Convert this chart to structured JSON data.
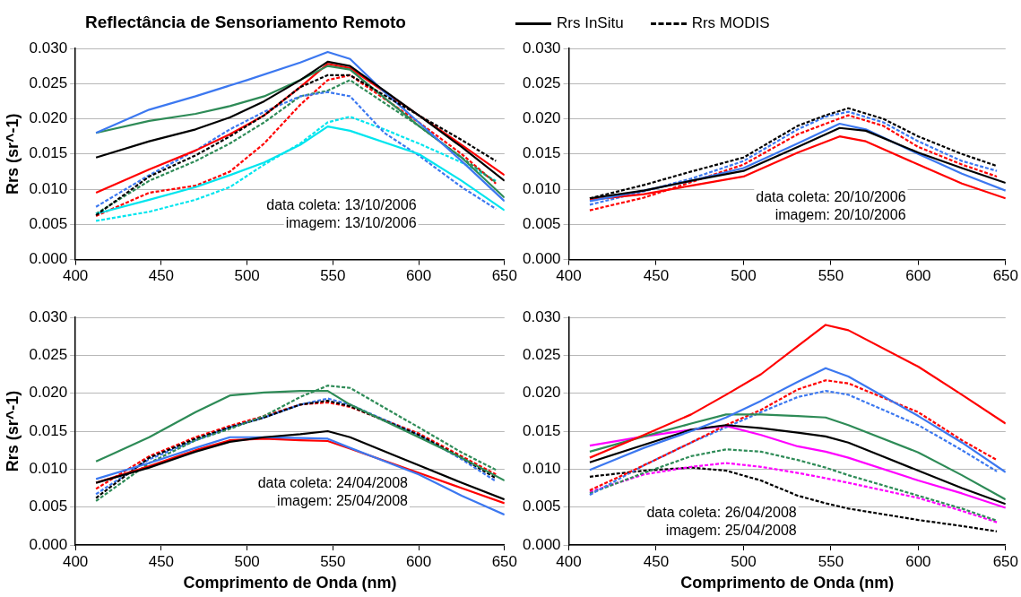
{
  "chart_data": [
    {
      "type": "line",
      "title": "Reflectância de Sensoriamento Remoto",
      "ylabel": "Rrs (sr^-1)",
      "xlim": [
        400,
        650
      ],
      "xticks": [
        400,
        450,
        500,
        550,
        600,
        650
      ],
      "ylim": [
        0,
        0.03
      ],
      "yticks": [
        {
          "value": 0,
          "label": "0.000"
        },
        {
          "value": 0.005,
          "label": "0.005"
        },
        {
          "value": 0.01,
          "label": "0.010"
        },
        {
          "value": 0.015,
          "label": "0.015"
        },
        {
          "value": 0.02,
          "label": "0.020"
        },
        {
          "value": 0.025,
          "label": "0.025"
        },
        {
          "value": 0.03,
          "label": "0.030"
        }
      ],
      "grid": "y",
      "legend": "top",
      "annotations": [
        "data coleta: 13/10/2006",
        "imagem: 13/10/2006"
      ],
      "series": [
        {
          "name": "Rrs InSitu",
          "color": "#000000",
          "line_style": "solid",
          "x": [
            412,
            443,
            470,
            490,
            510,
            531,
            547,
            560,
            600,
            625,
            650
          ],
          "values": [
            0.0145,
            0.0168,
            0.0185,
            0.0202,
            0.0225,
            0.0255,
            0.0281,
            0.0275,
            0.0205,
            0.016,
            0.0112
          ]
        },
        {
          "name": "Rrs MODIS",
          "color": "#000000",
          "line_style": "dashed",
          "x": [
            412,
            443,
            470,
            490,
            510,
            531,
            547,
            560,
            600,
            625,
            645
          ],
          "values": [
            0.0063,
            0.0118,
            0.0148,
            0.0175,
            0.0205,
            0.0245,
            0.0262,
            0.0262,
            0.0205,
            0.017,
            0.014
          ]
        },
        {
          "color": "#3c78f0",
          "line_style": "solid",
          "x": [
            412,
            443,
            470,
            500,
            531,
            547,
            560,
            580,
            600,
            625,
            650
          ],
          "values": [
            0.018,
            0.0213,
            0.0232,
            0.0255,
            0.028,
            0.0295,
            0.0285,
            0.0238,
            0.0195,
            0.014,
            0.0083
          ]
        },
        {
          "color": "#2e8b57",
          "line_style": "solid",
          "x": [
            412,
            443,
            470,
            490,
            510,
            531,
            547,
            560,
            600,
            625,
            650
          ],
          "values": [
            0.018,
            0.0197,
            0.0207,
            0.0218,
            0.0232,
            0.0255,
            0.0275,
            0.027,
            0.019,
            0.0145,
            0.0088
          ]
        },
        {
          "color": "#ff0000",
          "line_style": "solid",
          "x": [
            412,
            443,
            470,
            490,
            510,
            531,
            547,
            560,
            600,
            625,
            650
          ],
          "values": [
            0.0095,
            0.0128,
            0.0155,
            0.0178,
            0.0205,
            0.0245,
            0.0278,
            0.0272,
            0.0205,
            0.0163,
            0.012
          ]
        },
        {
          "color": "#00e5ee",
          "line_style": "solid",
          "x": [
            412,
            443,
            470,
            490,
            510,
            531,
            547,
            560,
            600,
            625,
            650
          ],
          "values": [
            0.0065,
            0.0085,
            0.0103,
            0.012,
            0.0138,
            0.0163,
            0.0189,
            0.0183,
            0.015,
            0.0112,
            0.007
          ]
        },
        {
          "color": "#3c78f0",
          "line_style": "dashed",
          "x": [
            412,
            443,
            470,
            490,
            510,
            531,
            547,
            560,
            580,
            600,
            625,
            645
          ],
          "values": [
            0.0075,
            0.012,
            0.0155,
            0.0185,
            0.021,
            0.0232,
            0.0238,
            0.0232,
            0.018,
            0.0148,
            0.0103,
            0.0072
          ]
        },
        {
          "color": "#2e8b57",
          "line_style": "dashed",
          "x": [
            412,
            443,
            470,
            490,
            510,
            531,
            547,
            560,
            600,
            625,
            645
          ],
          "values": [
            0.0065,
            0.0112,
            0.014,
            0.0165,
            0.0195,
            0.0232,
            0.024,
            0.0255,
            0.019,
            0.0145,
            0.011
          ]
        },
        {
          "color": "#ff0000",
          "line_style": "dashed",
          "x": [
            412,
            443,
            470,
            490,
            510,
            531,
            547,
            560,
            600,
            625,
            645
          ],
          "values": [
            0.0062,
            0.0095,
            0.0105,
            0.0125,
            0.0165,
            0.022,
            0.0255,
            0.0262,
            0.0195,
            0.015,
            0.0108
          ]
        },
        {
          "color": "#00e5ee",
          "line_style": "dashed",
          "x": [
            412,
            443,
            470,
            490,
            510,
            531,
            547,
            560,
            580,
            600,
            625,
            645
          ],
          "values": [
            0.0055,
            0.0068,
            0.0085,
            0.0103,
            0.0135,
            0.0165,
            0.0195,
            0.0203,
            0.0185,
            0.0165,
            0.0138,
            0.0112
          ]
        }
      ]
    },
    {
      "type": "line",
      "xlim": [
        400,
        650
      ],
      "xticks": [
        400,
        450,
        500,
        550,
        600,
        650
      ],
      "ylim": [
        0,
        0.03
      ],
      "yticks": [
        {
          "value": 0,
          "label": "0.000"
        },
        {
          "value": 0.005,
          "label": "0.005"
        },
        {
          "value": 0.01,
          "label": "0.010"
        },
        {
          "value": 0.015,
          "label": "0.015"
        },
        {
          "value": 0.02,
          "label": "0.020"
        },
        {
          "value": 0.025,
          "label": "0.025"
        },
        {
          "value": 0.03,
          "label": "0.030"
        }
      ],
      "grid": "y",
      "annotations": [
        "data coleta: 20/10/2006",
        "imagem: 20/10/2006"
      ],
      "series": [
        {
          "color": "#000000",
          "line_style": "solid",
          "x": [
            412,
            443,
            470,
            500,
            531,
            555,
            570,
            600,
            625,
            650
          ],
          "values": [
            0.0087,
            0.0098,
            0.0112,
            0.0126,
            0.016,
            0.0187,
            0.0183,
            0.0152,
            0.013,
            0.0109
          ]
        },
        {
          "color": "#3c78f0",
          "line_style": "solid",
          "x": [
            412,
            443,
            470,
            500,
            531,
            555,
            570,
            600,
            625,
            650
          ],
          "values": [
            0.0083,
            0.0098,
            0.0112,
            0.013,
            0.0165,
            0.0193,
            0.0185,
            0.015,
            0.0122,
            0.0098
          ]
        },
        {
          "color": "#ff0000",
          "line_style": "solid",
          "x": [
            412,
            443,
            470,
            500,
            531,
            555,
            570,
            600,
            625,
            650
          ],
          "values": [
            0.0085,
            0.0093,
            0.0105,
            0.0118,
            0.0152,
            0.0175,
            0.0168,
            0.0135,
            0.0108,
            0.0087
          ]
        },
        {
          "color": "#000000",
          "line_style": "dashed",
          "x": [
            412,
            443,
            470,
            500,
            531,
            547,
            560,
            580,
            600,
            625,
            645
          ],
          "values": [
            0.0087,
            0.0106,
            0.0125,
            0.0145,
            0.019,
            0.0205,
            0.0215,
            0.02,
            0.0175,
            0.015,
            0.0133
          ]
        },
        {
          "color": "#3c78f0",
          "line_style": "dashed",
          "x": [
            412,
            443,
            470,
            500,
            531,
            547,
            560,
            580,
            600,
            625,
            645
          ],
          "values": [
            0.0078,
            0.0097,
            0.0115,
            0.014,
            0.0185,
            0.0203,
            0.021,
            0.0195,
            0.0168,
            0.014,
            0.0126
          ]
        },
        {
          "color": "#ff0000",
          "line_style": "dashed",
          "x": [
            412,
            443,
            470,
            500,
            531,
            547,
            560,
            580,
            600,
            625,
            645
          ],
          "values": [
            0.007,
            0.0088,
            0.011,
            0.0135,
            0.0178,
            0.0193,
            0.0205,
            0.019,
            0.016,
            0.0135,
            0.0118
          ]
        }
      ]
    },
    {
      "type": "line",
      "xlabel": "Comprimento de Onda (nm)",
      "ylabel": "Rrs (sr^-1)",
      "xlim": [
        400,
        650
      ],
      "xticks": [
        400,
        450,
        500,
        550,
        600,
        650
      ],
      "ylim": [
        0,
        0.03
      ],
      "yticks": [
        {
          "value": 0,
          "label": "0.000"
        },
        {
          "value": 0.005,
          "label": "0.005"
        },
        {
          "value": 0.01,
          "label": "0.010"
        },
        {
          "value": 0.015,
          "label": "0.015"
        },
        {
          "value": 0.02,
          "label": "0.020"
        },
        {
          "value": 0.025,
          "label": "0.025"
        },
        {
          "value": 0.03,
          "label": "0.030"
        }
      ],
      "grid": "y",
      "annotations": [
        "data coleta: 24/04/2008",
        "imagem: 25/04/2008"
      ],
      "series": [
        {
          "color": "#2e8b57",
          "line_style": "solid",
          "x": [
            412,
            443,
            470,
            490,
            510,
            531,
            547,
            560,
            600,
            625,
            650
          ],
          "values": [
            0.011,
            0.0142,
            0.0175,
            0.0197,
            0.0201,
            0.0203,
            0.0203,
            0.0185,
            0.0142,
            0.0115,
            0.0085
          ]
        },
        {
          "color": "#000000",
          "line_style": "solid",
          "x": [
            412,
            443,
            470,
            490,
            510,
            531,
            547,
            560,
            600,
            625,
            650
          ],
          "values": [
            0.0082,
            0.0102,
            0.0123,
            0.0136,
            0.0142,
            0.0146,
            0.015,
            0.0142,
            0.0105,
            0.0082,
            0.006
          ]
        },
        {
          "color": "#3c78f0",
          "line_style": "solid",
          "x": [
            412,
            443,
            470,
            490,
            510,
            531,
            547,
            560,
            600,
            625,
            650
          ],
          "values": [
            0.0087,
            0.0108,
            0.0128,
            0.0142,
            0.0142,
            0.0141,
            0.014,
            0.0128,
            0.0093,
            0.0065,
            0.004
          ]
        },
        {
          "color": "#ff0000",
          "line_style": "solid",
          "x": [
            412,
            443,
            470,
            490,
            510,
            531,
            547,
            560,
            600,
            625,
            650
          ],
          "values": [
            0.0082,
            0.0104,
            0.0125,
            0.0138,
            0.014,
            0.0138,
            0.0137,
            0.0127,
            0.0095,
            0.0075,
            0.0055
          ]
        },
        {
          "color": "#2e8b57",
          "line_style": "dashed",
          "x": [
            412,
            443,
            470,
            490,
            510,
            531,
            547,
            560,
            600,
            625,
            645
          ],
          "values": [
            0.0058,
            0.0108,
            0.0138,
            0.0153,
            0.017,
            0.0195,
            0.021,
            0.0207,
            0.0155,
            0.0122,
            0.0099
          ]
        },
        {
          "color": "#000000",
          "line_style": "dashed",
          "x": [
            412,
            443,
            470,
            490,
            510,
            531,
            547,
            560,
            600,
            625,
            645
          ],
          "values": [
            0.0062,
            0.0115,
            0.014,
            0.0155,
            0.0168,
            0.0185,
            0.019,
            0.0183,
            0.0145,
            0.0115,
            0.0088
          ]
        },
        {
          "color": "#3c78f0",
          "line_style": "dashed",
          "x": [
            412,
            443,
            470,
            490,
            510,
            531,
            547,
            560,
            600,
            625,
            645
          ],
          "values": [
            0.0067,
            0.0113,
            0.0138,
            0.0155,
            0.0168,
            0.0185,
            0.0193,
            0.0185,
            0.0145,
            0.0113,
            0.0084
          ]
        },
        {
          "color": "#ff0000",
          "line_style": "dashed",
          "x": [
            412,
            443,
            470,
            490,
            510,
            531,
            547,
            560,
            600,
            625,
            645
          ],
          "values": [
            0.0074,
            0.0117,
            0.0142,
            0.0157,
            0.017,
            0.0185,
            0.0188,
            0.0182,
            0.0147,
            0.0117,
            0.0093
          ]
        }
      ]
    },
    {
      "type": "line",
      "xlabel": "Comprimento de Onda (nm)",
      "xlim": [
        400,
        650
      ],
      "xticks": [
        400,
        450,
        500,
        550,
        600,
        650
      ],
      "ylim": [
        0,
        0.03
      ],
      "yticks": [
        {
          "value": 0,
          "label": "0.000"
        },
        {
          "value": 0.005,
          "label": "0.005"
        },
        {
          "value": 0.01,
          "label": "0.010"
        },
        {
          "value": 0.015,
          "label": "0.015"
        },
        {
          "value": 0.02,
          "label": "0.020"
        },
        {
          "value": 0.025,
          "label": "0.025"
        },
        {
          "value": 0.03,
          "label": "0.030"
        }
      ],
      "grid": "y",
      "annotations": [
        "data coleta: 26/04/2008",
        "imagem: 25/04/2008"
      ],
      "series": [
        {
          "color": "#ff0000",
          "line_style": "solid",
          "x": [
            412,
            443,
            470,
            490,
            510,
            531,
            547,
            560,
            600,
            625,
            650
          ],
          "values": [
            0.0115,
            0.0145,
            0.0172,
            0.0198,
            0.0225,
            0.0262,
            0.029,
            0.0283,
            0.0235,
            0.0198,
            0.016
          ]
        },
        {
          "color": "#3c78f0",
          "line_style": "solid",
          "x": [
            412,
            443,
            470,
            490,
            510,
            531,
            547,
            560,
            600,
            625,
            650
          ],
          "values": [
            0.0099,
            0.0128,
            0.015,
            0.0168,
            0.019,
            0.0215,
            0.0233,
            0.0222,
            0.017,
            0.0135,
            0.0096
          ]
        },
        {
          "color": "#2e8b57",
          "line_style": "solid",
          "x": [
            412,
            443,
            470,
            490,
            510,
            531,
            547,
            560,
            600,
            625,
            650
          ],
          "values": [
            0.0123,
            0.0143,
            0.016,
            0.0172,
            0.0172,
            0.017,
            0.0168,
            0.0158,
            0.0122,
            0.0092,
            0.006
          ]
        },
        {
          "color": "#000000",
          "line_style": "solid",
          "x": [
            412,
            443,
            470,
            490,
            510,
            531,
            547,
            560,
            600,
            625,
            650
          ],
          "values": [
            0.0109,
            0.0132,
            0.0152,
            0.0158,
            0.0154,
            0.0148,
            0.0143,
            0.0135,
            0.0098,
            0.0075,
            0.0054
          ]
        },
        {
          "color": "#ff00ff",
          "line_style": "solid",
          "x": [
            412,
            443,
            470,
            490,
            510,
            531,
            547,
            560,
            600,
            625,
            650
          ],
          "values": [
            0.0131,
            0.0143,
            0.0152,
            0.0157,
            0.0145,
            0.013,
            0.0123,
            0.0115,
            0.0085,
            0.0068,
            0.0049
          ]
        },
        {
          "color": "#ff0000",
          "line_style": "dashed",
          "x": [
            412,
            443,
            470,
            490,
            510,
            531,
            547,
            560,
            600,
            625,
            645
          ],
          "values": [
            0.0072,
            0.0105,
            0.0135,
            0.0158,
            0.0178,
            0.0205,
            0.0217,
            0.0213,
            0.0175,
            0.0138,
            0.0112
          ]
        },
        {
          "color": "#3c78f0",
          "line_style": "dashed",
          "x": [
            412,
            443,
            470,
            490,
            510,
            531,
            547,
            560,
            600,
            625,
            645
          ],
          "values": [
            0.0066,
            0.0105,
            0.0135,
            0.0155,
            0.0175,
            0.0195,
            0.0203,
            0.0198,
            0.0158,
            0.0125,
            0.0097
          ]
        },
        {
          "color": "#2e8b57",
          "line_style": "dashed",
          "x": [
            412,
            443,
            470,
            490,
            510,
            531,
            547,
            560,
            600,
            625,
            645
          ],
          "values": [
            0.0068,
            0.0095,
            0.0117,
            0.0126,
            0.0123,
            0.0112,
            0.0102,
            0.0092,
            0.0065,
            0.0048,
            0.0032
          ]
        },
        {
          "color": "#ff00ff",
          "line_style": "dashed",
          "x": [
            412,
            443,
            470,
            490,
            510,
            531,
            547,
            560,
            600,
            625,
            645
          ],
          "values": [
            0.007,
            0.0093,
            0.0103,
            0.0108,
            0.0103,
            0.0095,
            0.0088,
            0.0082,
            0.0062,
            0.0045,
            0.003
          ]
        },
        {
          "color": "#000000",
          "line_style": "dashed",
          "x": [
            412,
            443,
            470,
            490,
            510,
            531,
            547,
            560,
            600,
            625,
            645
          ],
          "values": [
            0.009,
            0.0098,
            0.0102,
            0.0098,
            0.0085,
            0.0065,
            0.0055,
            0.0048,
            0.0033,
            0.0025,
            0.0018
          ]
        }
      ]
    }
  ]
}
